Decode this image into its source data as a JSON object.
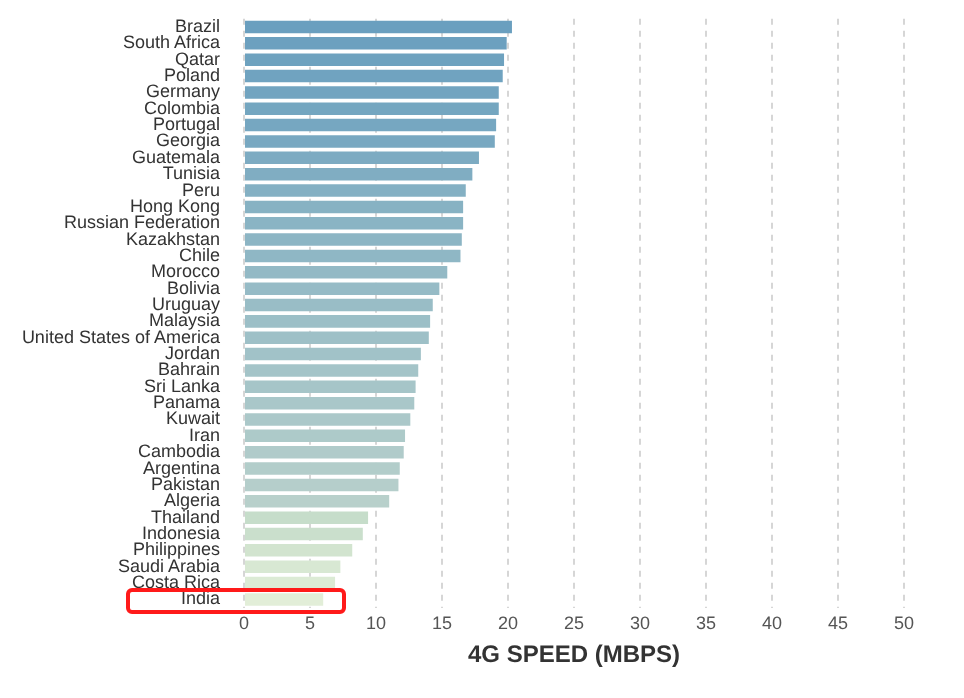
{
  "chart_data": {
    "type": "bar",
    "orientation": "horizontal",
    "xlabel": "4G SPEED (MBPS)",
    "categories": [
      "Brazil",
      "South Africa",
      "Qatar",
      "Poland",
      "Germany",
      "Colombia",
      "Portugal",
      "Georgia",
      "Guatemala",
      "Tunisia",
      "Peru",
      "Hong Kong",
      "Russian Federation",
      "Kazakhstan",
      "Chile",
      "Morocco",
      "Bolivia",
      "Uruguay",
      "Malaysia",
      "United States of America",
      "Jordan",
      "Bahrain",
      "Sri Lanka",
      "Panama",
      "Kuwait",
      "Iran",
      "Cambodia",
      "Argentina",
      "Pakistan",
      "Algeria",
      "Thailand",
      "Indonesia",
      "Philippines",
      "Saudi Arabia",
      "Costa Rica",
      "India"
    ],
    "values": [
      20.3,
      19.9,
      19.7,
      19.6,
      19.3,
      19.3,
      19.1,
      19.0,
      17.8,
      17.3,
      16.8,
      16.6,
      16.6,
      16.5,
      16.4,
      15.4,
      14.8,
      14.3,
      14.1,
      14.0,
      13.4,
      13.2,
      13.0,
      12.9,
      12.6,
      12.2,
      12.1,
      11.8,
      11.7,
      11.0,
      9.4,
      9.0,
      8.2,
      7.3,
      6.9,
      6.0
    ],
    "colors": [
      "#6a9fbf",
      "#6ca0bf",
      "#6ea2bf",
      "#70a3c0",
      "#72a4c0",
      "#74a6c0",
      "#76a7c1",
      "#78a8c1",
      "#7dabc2",
      "#80adc2",
      "#84b0c3",
      "#87b2c3",
      "#8ab4c4",
      "#8cb5c4",
      "#8fb7c5",
      "#93b9c5",
      "#96bbc6",
      "#99bdc6",
      "#9cbfc7",
      "#9ec0c7",
      "#a1c2c8",
      "#a4c4c8",
      "#a6c5c8",
      "#a9c7c9",
      "#abc8c9",
      "#adcac9",
      "#b0cbca",
      "#b2cdca",
      "#b5cecb",
      "#b8d0cb",
      "#c6ddca",
      "#cadfcc",
      "#d2e4cf",
      "#d8e8d3",
      "#dcebd5",
      "#e2eed8"
    ],
    "xlim": [
      0,
      50
    ],
    "xticks": [
      0,
      5,
      10,
      15,
      20,
      25,
      30,
      35,
      40,
      45,
      50
    ],
    "grid": "x"
  }
}
